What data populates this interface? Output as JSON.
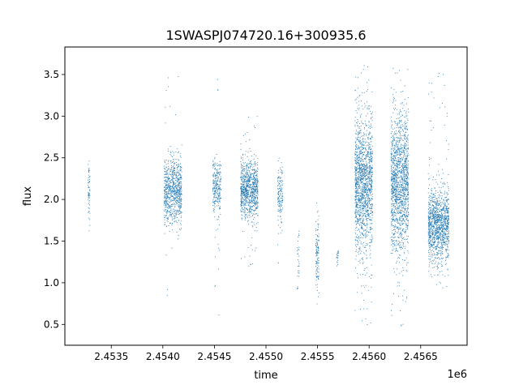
{
  "chart_data": {
    "type": "scatter",
    "title": "1SWASPJ074720.16+300935.6",
    "xlabel": "time",
    "ylabel": "flux",
    "x_offset_label": "1e6",
    "xlim": [
      2.45305,
      2.45695
    ],
    "ylim": [
      0.25,
      3.83
    ],
    "x_ticks": [
      2.4535,
      2.454,
      2.4545,
      2.455,
      2.4555,
      2.456,
      2.4565
    ],
    "x_tick_labels": [
      "2.4535",
      "2.4540",
      "2.4545",
      "2.4550",
      "2.4555",
      "2.4560",
      "2.4565"
    ],
    "y_ticks": [
      0.5,
      1.0,
      1.5,
      2.0,
      2.5,
      3.0,
      3.5
    ],
    "y_tick_labels": [
      "0.5",
      "1.0",
      "1.5",
      "2.0",
      "2.5",
      "3.0",
      "3.5"
    ],
    "grid": false,
    "marker_color": "#1f77b4",
    "series": [
      {
        "observing_seasons": [
          {
            "x_start": 2.45327,
            "x_end": 2.45329,
            "flux_center": 2.1,
            "flux_spread": 0.18,
            "flux_min": 1.55,
            "flux_max": 2.85,
            "points": 60
          },
          {
            "x_start": 2.45401,
            "x_end": 2.45418,
            "flux_center": 2.1,
            "flux_spread": 0.2,
            "flux_min": 0.75,
            "flux_max": 3.55,
            "points": 800
          },
          {
            "x_start": 2.45448,
            "x_end": 2.45456,
            "flux_center": 2.15,
            "flux_spread": 0.16,
            "flux_min": 0.5,
            "flux_max": 3.6,
            "points": 260
          },
          {
            "x_start": 2.45475,
            "x_end": 2.45492,
            "flux_center": 2.12,
            "flux_spread": 0.17,
            "flux_min": 1.2,
            "flux_max": 3.05,
            "points": 900
          },
          {
            "x_start": 2.45511,
            "x_end": 2.45516,
            "flux_center": 2.05,
            "flux_spread": 0.17,
            "flux_min": 1.05,
            "flux_max": 2.5,
            "points": 150
          },
          {
            "x_start": 2.4553,
            "x_end": 2.45532,
            "flux_center": 1.3,
            "flux_spread": 0.2,
            "flux_min": 0.85,
            "flux_max": 1.75,
            "points": 30
          },
          {
            "x_start": 2.45548,
            "x_end": 2.45551,
            "flux_center": 1.3,
            "flux_spread": 0.2,
            "flux_min": 0.75,
            "flux_max": 2.1,
            "points": 120
          },
          {
            "x_start": 2.45568,
            "x_end": 2.4557,
            "flux_center": 1.3,
            "flux_spread": 0.05,
            "flux_min": 1.2,
            "flux_max": 1.4,
            "points": 20
          },
          {
            "x_start": 2.45586,
            "x_end": 2.45603,
            "flux_center": 2.2,
            "flux_spread": 0.4,
            "flux_min": 0.45,
            "flux_max": 3.65,
            "points": 1500
          },
          {
            "x_start": 2.45621,
            "x_end": 2.45638,
            "flux_center": 2.2,
            "flux_spread": 0.4,
            "flux_min": 0.45,
            "flux_max": 3.65,
            "points": 1500
          },
          {
            "x_start": 2.45657,
            "x_end": 2.45677,
            "flux_center": 1.7,
            "flux_spread": 0.22,
            "flux_min": 0.9,
            "flux_max": 3.55,
            "points": 1200
          }
        ]
      }
    ]
  }
}
